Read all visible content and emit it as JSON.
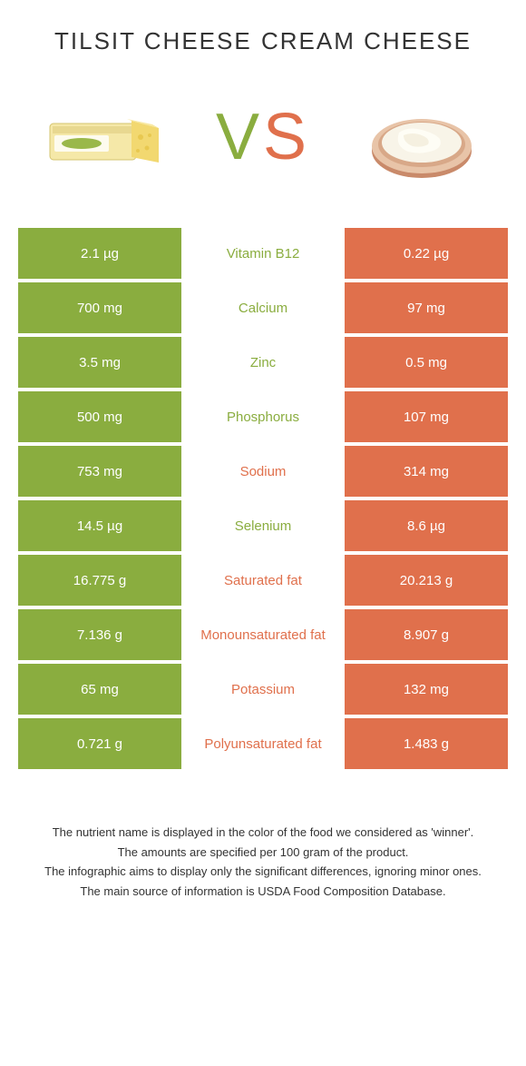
{
  "left": {
    "title": "TILSIT CHEESE"
  },
  "right": {
    "title": "CREAM CHEESE"
  },
  "vs": "VS",
  "colors": {
    "green": "#8aad3f",
    "orange": "#e0704c",
    "bg": "#ffffff",
    "text": "#333333"
  },
  "rows": [
    {
      "left": "2.1 µg",
      "label": "Vitamin B12",
      "right": "0.22 µg",
      "winner": "green"
    },
    {
      "left": "700 mg",
      "label": "Calcium",
      "right": "97 mg",
      "winner": "green"
    },
    {
      "left": "3.5 mg",
      "label": "Zinc",
      "right": "0.5 mg",
      "winner": "green"
    },
    {
      "left": "500 mg",
      "label": "Phosphorus",
      "right": "107 mg",
      "winner": "green"
    },
    {
      "left": "753 mg",
      "label": "Sodium",
      "right": "314 mg",
      "winner": "orange"
    },
    {
      "left": "14.5 µg",
      "label": "Selenium",
      "right": "8.6 µg",
      "winner": "green"
    },
    {
      "left": "16.775 g",
      "label": "Saturated fat",
      "right": "20.213 g",
      "winner": "orange"
    },
    {
      "left": "7.136 g",
      "label": "Monounsaturated fat",
      "right": "8.907 g",
      "winner": "orange"
    },
    {
      "left": "65 mg",
      "label": "Potassium",
      "right": "132 mg",
      "winner": "orange"
    },
    {
      "left": "0.721 g",
      "label": "Polyunsaturated fat",
      "right": "1.483 g",
      "winner": "orange"
    }
  ],
  "footer": [
    "The nutrient name is displayed in the color of the food we considered as 'winner'.",
    "The amounts are specified per 100 gram of the product.",
    "The infographic aims to display only the significant differences, ignoring minor ones.",
    "The main source of information is USDA Food Composition Database."
  ]
}
